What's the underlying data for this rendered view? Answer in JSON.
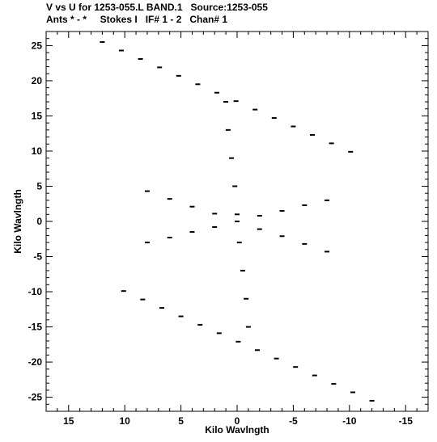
{
  "chart_data": {
    "type": "scatter",
    "title": "V vs U for 1253-055.L BAND.1   Source:1253-055",
    "subtitle": "Ants * - *     Stokes I   IF# 1 - 2   Chan# 1",
    "xlabel": "Kilo Wavlngth",
    "ylabel": "Kilo Wavlngth",
    "xlim": [
      17,
      -17
    ],
    "ylim": [
      -27,
      27
    ],
    "x_ticks": [
      15,
      10,
      5,
      0,
      -5,
      -10,
      -15
    ],
    "y_ticks": [
      25,
      20,
      15,
      10,
      5,
      0,
      -5,
      -10,
      -15,
      -20,
      -25
    ],
    "grid": false,
    "marker_color": "#000000",
    "series": [
      {
        "points": [
          [
            12.0,
            25.5
          ],
          [
            10.3,
            24.3
          ],
          [
            8.6,
            23.1
          ],
          [
            6.9,
            21.9
          ],
          [
            5.2,
            20.7
          ],
          [
            3.5,
            19.5
          ],
          [
            1.8,
            18.3
          ],
          [
            0.1,
            17.1
          ],
          [
            -1.6,
            15.9
          ],
          [
            -3.3,
            14.7
          ],
          [
            -5.0,
            13.5
          ],
          [
            -6.7,
            12.3
          ],
          [
            -8.4,
            11.1
          ],
          [
            -10.1,
            9.9
          ]
        ]
      },
      {
        "points": [
          [
            -12.0,
            -25.5
          ],
          [
            -10.3,
            -24.3
          ],
          [
            -8.6,
            -23.1
          ],
          [
            -6.9,
            -21.9
          ],
          [
            -5.2,
            -20.7
          ],
          [
            -3.5,
            -19.5
          ],
          [
            -1.8,
            -18.3
          ],
          [
            -0.1,
            -17.1
          ],
          [
            1.6,
            -15.9
          ],
          [
            3.3,
            -14.7
          ],
          [
            5.0,
            -13.5
          ],
          [
            6.7,
            -12.3
          ],
          [
            8.4,
            -11.1
          ],
          [
            10.1,
            -9.9
          ]
        ]
      },
      {
        "points": [
          [
            8.0,
            4.3
          ],
          [
            6.0,
            3.2
          ],
          [
            4.0,
            2.1
          ],
          [
            2.0,
            1.1
          ],
          [
            0.0,
            0.0
          ],
          [
            -2.0,
            -1.1
          ],
          [
            -4.0,
            -2.1
          ],
          [
            -6.0,
            -3.2
          ],
          [
            -8.0,
            -4.3
          ]
        ]
      },
      {
        "points": [
          [
            -8.0,
            3.0
          ],
          [
            -6.0,
            2.3
          ],
          [
            -4.0,
            1.5
          ],
          [
            -2.0,
            0.8
          ],
          [
            0.0,
            0.0
          ],
          [
            2.0,
            -0.8
          ],
          [
            4.0,
            -1.5
          ],
          [
            6.0,
            -2.3
          ],
          [
            8.0,
            -3.0
          ]
        ]
      },
      {
        "points": [
          [
            1.0,
            17.0
          ],
          [
            0.8,
            13.0
          ],
          [
            0.5,
            9.0
          ],
          [
            0.2,
            5.0
          ],
          [
            0.0,
            1.0
          ],
          [
            -0.2,
            -3.0
          ],
          [
            -0.5,
            -7.0
          ],
          [
            -0.8,
            -11.0
          ],
          [
            -1.0,
            -15.0
          ]
        ]
      }
    ]
  }
}
